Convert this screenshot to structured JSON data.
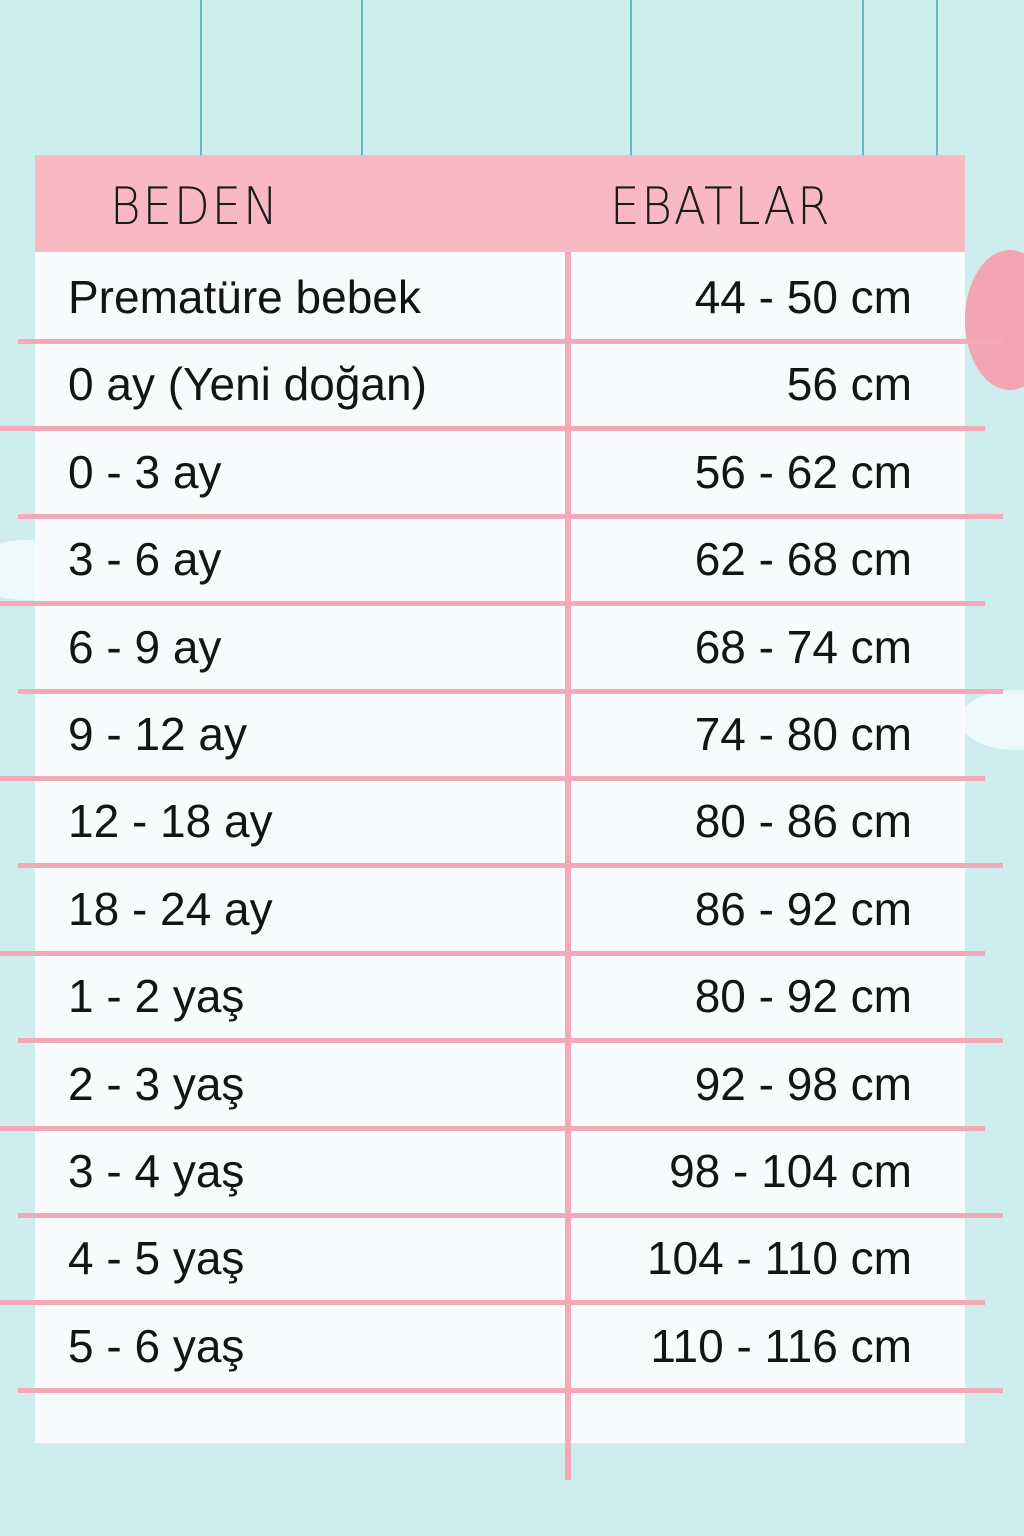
{
  "colors": {
    "background": "#cdeeed",
    "header": "#f9b9c3",
    "rule": "#f3a9b7",
    "string": "#5fb8c2"
  },
  "table": {
    "headers": [
      "BEDEN",
      "EBATLAR"
    ],
    "rows": [
      {
        "size": "Prematüre bebek",
        "measure": "44 - 50 cm"
      },
      {
        "size": "0 ay (Yeni doğan)",
        "measure": "56 cm"
      },
      {
        "size": "0 - 3 ay",
        "measure": "56 - 62 cm"
      },
      {
        "size": "3 - 6 ay",
        "measure": "62 - 68 cm"
      },
      {
        "size": "6 - 9 ay",
        "measure": "68 - 74 cm"
      },
      {
        "size": "9 - 12 ay",
        "measure": "74 - 80 cm"
      },
      {
        "size": "12 - 18 ay",
        "measure": "80 - 86 cm"
      },
      {
        "size": "18 - 24 ay",
        "measure": "86 - 92 cm"
      },
      {
        "size": "1 - 2 yaş",
        "measure": "80 - 92 cm"
      },
      {
        "size": "2 - 3 yaş",
        "measure": "92 - 98 cm"
      },
      {
        "size": "3 - 4 yaş",
        "measure": "98 - 104 cm"
      },
      {
        "size": "4 - 5 yaş",
        "measure": "104 - 110 cm"
      },
      {
        "size": "5 - 6 yaş",
        "measure": "110 - 116 cm"
      }
    ]
  }
}
